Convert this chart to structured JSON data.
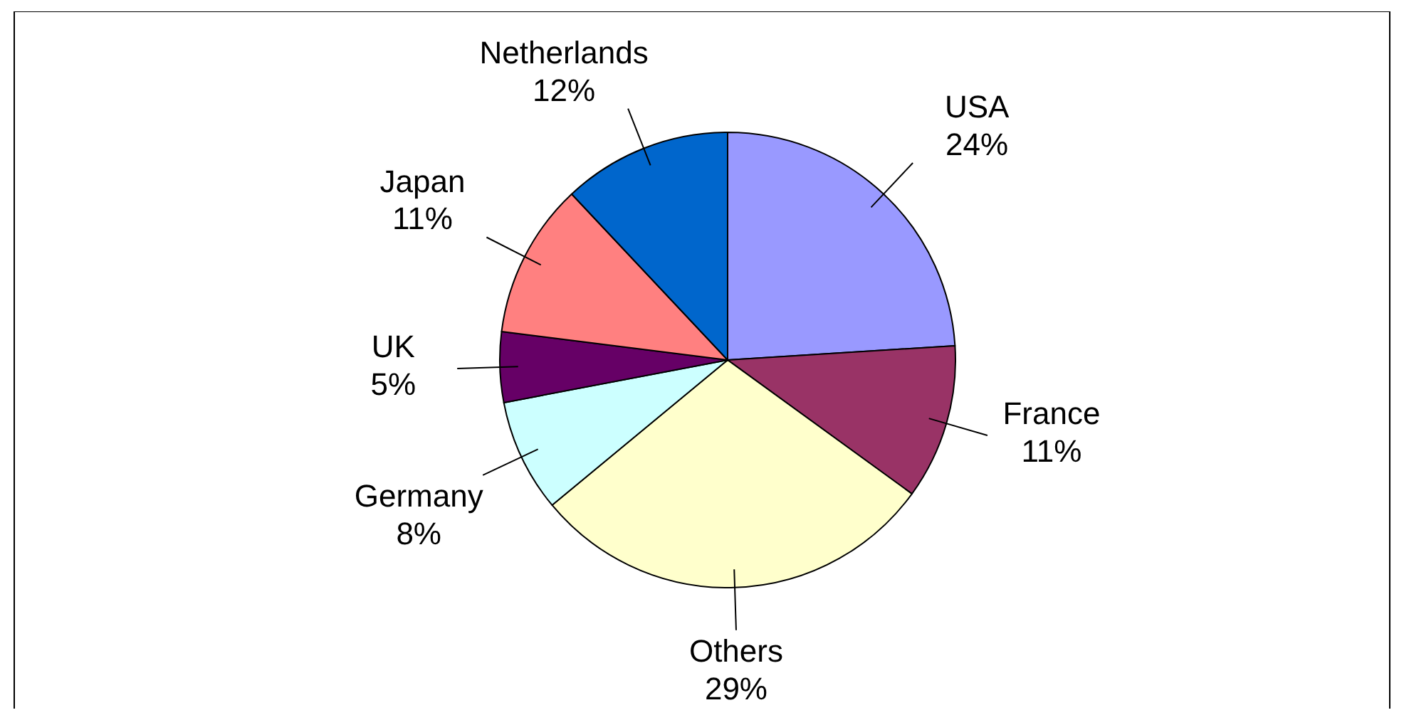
{
  "chart_data": {
    "type": "pie",
    "categories": [
      "USA",
      "France",
      "Others",
      "Germany",
      "UK",
      "Japan",
      "Netherlands"
    ],
    "values": [
      24,
      11,
      29,
      8,
      5,
      11,
      12
    ],
    "colors": [
      "#9999ff",
      "#993366",
      "#ffffcc",
      "#ccffff",
      "#660066",
      "#ff8080",
      "#0066cc"
    ],
    "value_labels": [
      "24%",
      "11%",
      "29%",
      "8%",
      "5%",
      "11%",
      "12%"
    ]
  }
}
